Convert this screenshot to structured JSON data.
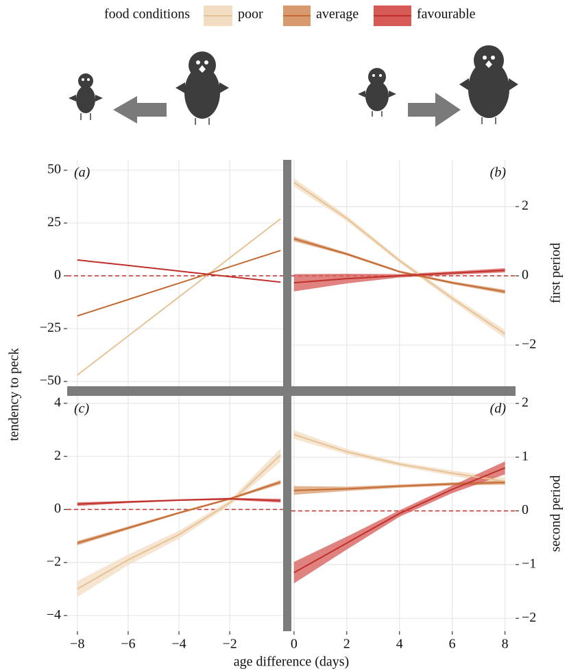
{
  "legend": {
    "title": "food conditions",
    "entries": [
      {
        "name": "poor",
        "color": "#e6c297",
        "fill": "#f2dcc2"
      },
      {
        "name": "average",
        "color": "#c46a33",
        "fill": "#d89a6c"
      },
      {
        "name": "favourable",
        "color": "#c0302a",
        "fill": "#d65a55"
      }
    ]
  },
  "ylabel": "tendency to peck",
  "xlabel": "age difference (days)",
  "chart_data": [
    {
      "type": "line",
      "label": "(a)",
      "x": [
        -8,
        -6,
        -4,
        -2,
        0
      ],
      "xlim": [
        -8.4,
        0.1
      ],
      "xticks": [
        -8,
        -6,
        -4,
        -2
      ],
      "show_xtick_labels": false,
      "ylim": [
        -52.3,
        54.9
      ],
      "yticks": [
        50,
        25,
        0,
        {
          "value": -25,
          "label": "−25"
        },
        {
          "value": -50,
          "label": "−50"
        }
      ],
      "grid": true,
      "reference_line": 0,
      "series": [
        {
          "color": "#e6c297",
          "values": [
            -47,
            -28.5,
            -10,
            8.5,
            27
          ]
        },
        {
          "color": "#c46a33",
          "values": [
            -19,
            -11.25,
            -3.5,
            4.25,
            12
          ]
        },
        {
          "color": "#c0302a",
          "values": [
            7.5,
            4.9,
            2.25,
            -0.4,
            -3
          ]
        }
      ]
    },
    {
      "type": "line",
      "label": "(b)",
      "x": [
        0,
        2,
        4,
        6,
        8
      ],
      "xlim": [
        -0.1,
        8.4
      ],
      "xticks": [
        0,
        2,
        4,
        6,
        8
      ],
      "show_xtick_labels": false,
      "y2lim": [
        -3.19,
        3.35
      ],
      "y2ticks": [
        2,
        0,
        {
          "value": -2,
          "label": "−2"
        }
      ],
      "y2label": "first period",
      "grid": true,
      "reference_line": 0,
      "series": [
        {
          "axis": "y2",
          "color": "#e6c297",
          "fill": "#f2dcc2",
          "values": [
            2.7,
            1.66,
            0.44,
            -0.65,
            -1.68
          ],
          "lower": [
            2.58,
            1.58,
            0.38,
            -0.73,
            -1.8
          ],
          "upper": [
            2.82,
            1.74,
            0.5,
            -0.57,
            -1.56
          ]
        },
        {
          "axis": "y2",
          "color": "#c46a33",
          "fill": "#d89a6c",
          "values": [
            1.07,
            0.63,
            0.12,
            -0.2,
            -0.46
          ],
          "lower": [
            1.0,
            0.59,
            0.09,
            -0.24,
            -0.52
          ],
          "upper": [
            1.14,
            0.67,
            0.15,
            -0.16,
            -0.4
          ]
        },
        {
          "axis": "y2",
          "color": "#c0302a",
          "fill": "#d65a55",
          "values": [
            -0.2,
            -0.08,
            0.0,
            0.08,
            0.16
          ],
          "lower": [
            -0.45,
            -0.22,
            -0.05,
            0.03,
            0.1
          ],
          "upper": [
            0.05,
            0.06,
            0.05,
            0.13,
            0.22
          ]
        }
      ]
    },
    {
      "type": "line",
      "label": "(c)",
      "x": [
        -8,
        -6,
        -4,
        -2,
        0
      ],
      "xlim": [
        -8.4,
        0.1
      ],
      "xticks": [
        {
          "value": -8,
          "label": "−8"
        },
        {
          "value": -6,
          "label": "−6"
        },
        {
          "value": -4,
          "label": "−4"
        },
        {
          "value": -2,
          "label": "−2"
        }
      ],
      "ylim": [
        -4.59,
        4.28
      ],
      "yticks": [
        4,
        2,
        0,
        {
          "value": -2,
          "label": "−2"
        },
        {
          "value": -4,
          "label": "−4"
        }
      ],
      "grid": true,
      "reference_line": 0,
      "series": [
        {
          "color": "#e6c297",
          "fill": "#f2dcc2",
          "values": [
            -3.0,
            -1.9,
            -0.95,
            0.25,
            2.05
          ],
          "lower": [
            -3.3,
            -2.1,
            -1.1,
            0.15,
            1.8
          ],
          "upper": [
            -2.7,
            -1.7,
            -0.8,
            0.35,
            2.3
          ]
        },
        {
          "color": "#c46a33",
          "fill": "#d89a6c",
          "values": [
            -1.27,
            -0.7,
            -0.13,
            0.4,
            1.03
          ],
          "lower": [
            -1.35,
            -0.76,
            -0.17,
            0.36,
            0.95
          ],
          "upper": [
            -1.19,
            -0.64,
            -0.09,
            0.44,
            1.11
          ]
        },
        {
          "color": "#c0302a",
          "fill": "#d65a55",
          "values": [
            0.2,
            0.28,
            0.35,
            0.4,
            0.33
          ],
          "lower": [
            0.13,
            0.24,
            0.32,
            0.36,
            0.26
          ],
          "upper": [
            0.27,
            0.32,
            0.38,
            0.44,
            0.4
          ]
        }
      ]
    },
    {
      "type": "line",
      "label": "(d)",
      "x": [
        0,
        2,
        4,
        6,
        8
      ],
      "xlim": [
        -0.1,
        8.4
      ],
      "xticks": [
        0,
        2,
        4,
        6,
        8
      ],
      "y2lim": [
        -2.24,
        2.14
      ],
      "y2ticks": [
        2,
        1,
        0,
        {
          "value": -1,
          "label": "−1"
        },
        {
          "value": -2,
          "label": "−2"
        }
      ],
      "y2label": "second period",
      "grid": true,
      "reference_line": 0,
      "series": [
        {
          "axis": "y2",
          "color": "#e6c297",
          "fill": "#f2dcc2",
          "values": [
            1.42,
            1.1,
            0.87,
            0.7,
            0.55
          ],
          "lower": [
            1.34,
            1.05,
            0.83,
            0.65,
            0.48
          ],
          "upper": [
            1.5,
            1.15,
            0.91,
            0.75,
            0.62
          ]
        },
        {
          "axis": "y2",
          "color": "#c46a33",
          "fill": "#d89a6c",
          "values": [
            0.38,
            0.41,
            0.46,
            0.5,
            0.53
          ],
          "lower": [
            0.3,
            0.37,
            0.43,
            0.47,
            0.49
          ],
          "upper": [
            0.46,
            0.45,
            0.49,
            0.53,
            0.57
          ]
        },
        {
          "axis": "y2",
          "color": "#c0302a",
          "fill": "#d65a55",
          "values": [
            -1.15,
            -0.6,
            -0.05,
            0.4,
            0.8
          ],
          "lower": [
            -1.35,
            -0.72,
            -0.11,
            0.33,
            0.68
          ],
          "upper": [
            -0.95,
            -0.48,
            0.01,
            0.47,
            0.92
          ]
        }
      ]
    }
  ]
}
